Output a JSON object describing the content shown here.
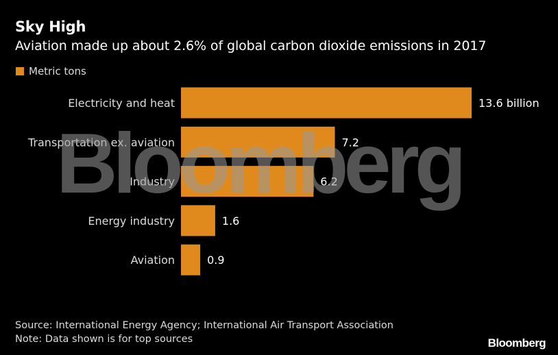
{
  "colors": {
    "background": "#000000",
    "bar": "#e08a1e",
    "text": "#ffffff",
    "muted_text": "#dcdcdc",
    "watermark": "#9a9a9a"
  },
  "header": {
    "title": "Sky High",
    "subtitle": "Aviation made up about 2.6% of global carbon dioxide emissions in 2017"
  },
  "legend": {
    "label": "Metric tons",
    "swatch_color": "#e08a1e"
  },
  "chart_data": {
    "type": "bar",
    "orientation": "horizontal",
    "title": "Sky High",
    "subtitle": "Aviation made up about 2.6% of global carbon dioxide emissions in 2017",
    "categories": [
      "Electricity and heat",
      "Transportation ex. aviation",
      "Industry",
      "Energy industry",
      "Aviation"
    ],
    "series": [
      {
        "name": "Metric tons",
        "values": [
          13.6,
          7.2,
          6.2,
          1.6,
          0.9
        ]
      }
    ],
    "data_labels": [
      "13.6 billion",
      "7.2",
      "6.2",
      "1.6",
      "0.9"
    ],
    "xlim": [
      0,
      13.6
    ],
    "grid": false,
    "legend_position": "top-left"
  },
  "watermark": {
    "text": "Bloomberg"
  },
  "footer": {
    "source": "Source: International Energy Agency; International Air Transport Association",
    "note": "Note: Data shown is for top sources",
    "brand": "Bloomberg"
  }
}
